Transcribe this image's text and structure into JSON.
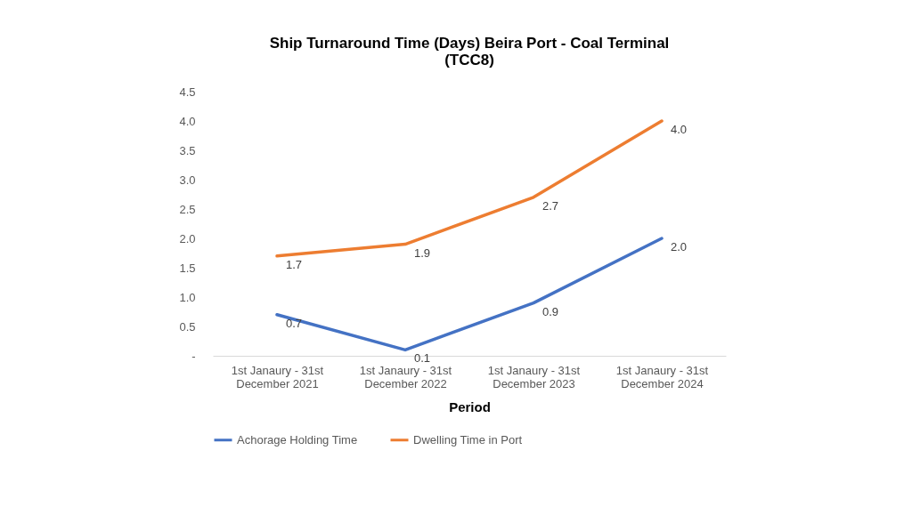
{
  "chart_data": {
    "type": "line",
    "title": "Ship Turnaround Time (Days) Beira Port - Coal Terminal\n(TCC8)",
    "xlabel": "Period",
    "categories": [
      "1st Janaury - 31st\nDecember 2021",
      "1st Janaury - 31st\nDecember 2022",
      "1st Janaury - 31st\nDecember 2023",
      "1st Janaury - 31st\nDecember 2024"
    ],
    "series": [
      {
        "name": "Achorage Holding Time",
        "color": "#4472c4",
        "values": [
          0.7,
          0.1,
          0.9,
          2.0
        ],
        "value_labels": [
          "0.7",
          "0.1",
          "0.9",
          "2.0"
        ]
      },
      {
        "name": "Dwelling Time  in Port",
        "color": "#ed7d31",
        "values": [
          1.7,
          1.9,
          2.7,
          4.0
        ],
        "value_labels": [
          "1.7",
          "1.9",
          "2.7",
          "4.0"
        ]
      }
    ],
    "ylim": [
      0,
      4.5
    ],
    "yticks": [
      {
        "value": 0,
        "label": "-"
      },
      {
        "value": 0.5,
        "label": "0.5"
      },
      {
        "value": 1,
        "label": "1.0"
      },
      {
        "value": 1.5,
        "label": "1.5"
      },
      {
        "value": 2,
        "label": "2.0"
      },
      {
        "value": 2.5,
        "label": "2.5"
      },
      {
        "value": 3,
        "label": "3.0"
      },
      {
        "value": 3.5,
        "label": "3.5"
      },
      {
        "value": 4,
        "label": "4.0"
      },
      {
        "value": 4.5,
        "label": "4.5"
      }
    ],
    "grid": false,
    "legend": "bottom",
    "marker": "none",
    "line_style": "solid"
  }
}
